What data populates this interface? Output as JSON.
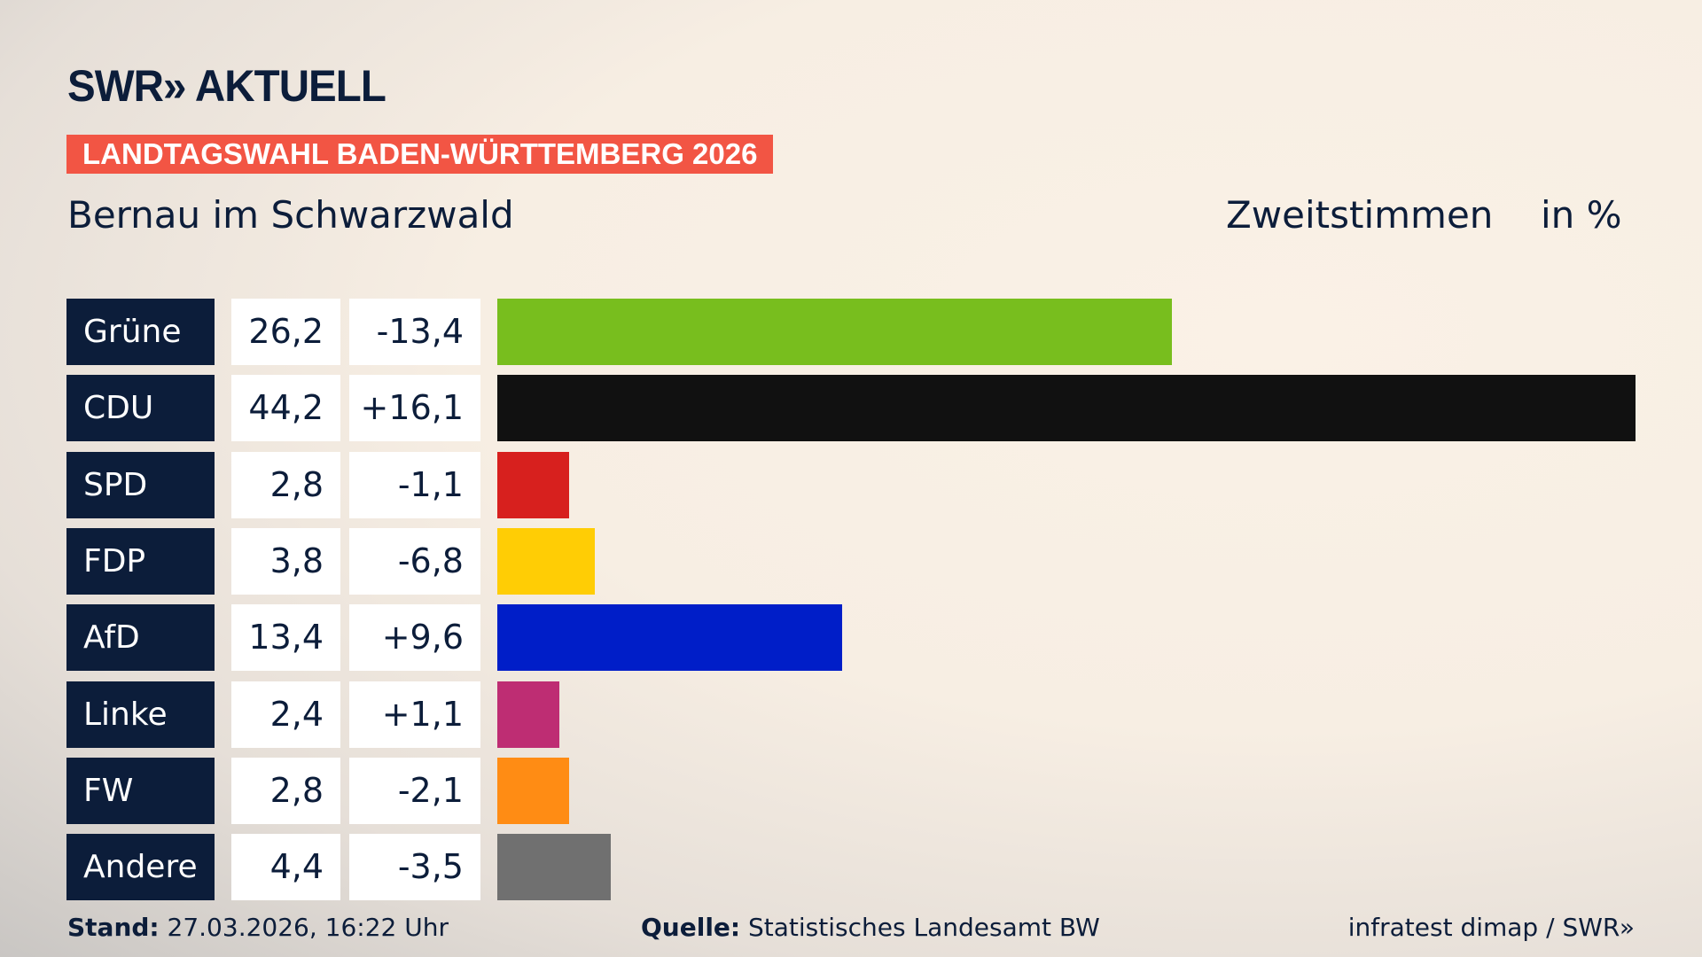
{
  "header": {
    "logo": "SWR» AKTUELL",
    "banner": "LANDTAGSWAHL BADEN-WÜRTTEMBERG 2026",
    "subtitle": "Bernau im Schwarzwald",
    "metric": "Zweitstimmen",
    "unit": "in %"
  },
  "chart_data": {
    "type": "bar",
    "orientation": "horizontal",
    "categories": [
      "Grüne",
      "CDU",
      "SPD",
      "FDP",
      "AfD",
      "Linke",
      "FW",
      "Andere"
    ],
    "values": [
      26.2,
      44.2,
      2.8,
      3.8,
      13.4,
      2.4,
      2.8,
      4.4
    ],
    "value_labels": [
      "26,2",
      "44,2",
      "2,8",
      "3,8",
      "13,4",
      "2,4",
      "2,8",
      "4,4"
    ],
    "changes": [
      "-13,4",
      "+16,1",
      "-1,1",
      "-6,8",
      "+9,6",
      "+1,1",
      "-2,1",
      "-3,5"
    ],
    "colors": [
      "#78be1e",
      "#111111",
      "#d7201e",
      "#ffcd05",
      "#001ec8",
      "#be2d73",
      "#ff8c14",
      "#707070"
    ],
    "ylabel": "in %"
  },
  "footer": {
    "stand_label": "Stand:",
    "stand_value": "27.03.2026, 16:22 Uhr",
    "source_label": "Quelle:",
    "source_value": "Statistisches Landesamt BW",
    "credit": "infratest dimap / SWR»"
  }
}
